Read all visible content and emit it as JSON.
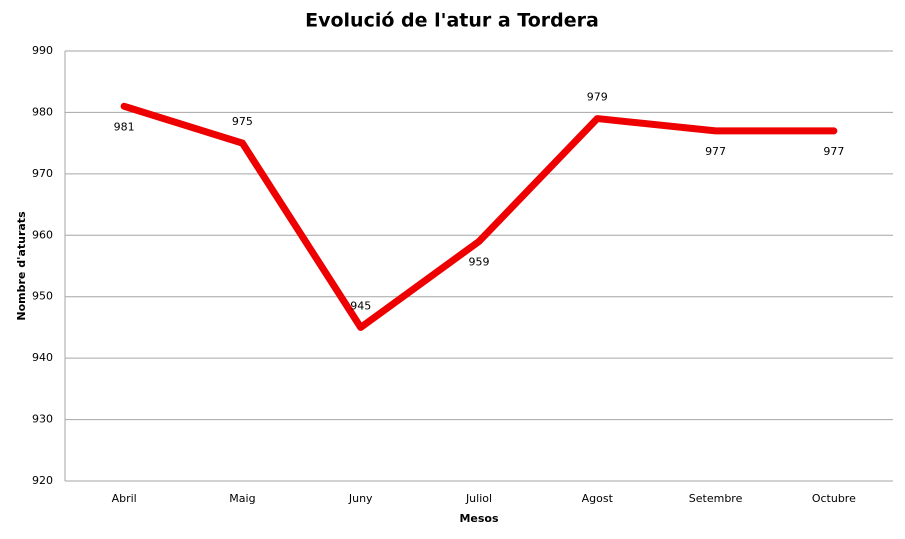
{
  "chart_data": {
    "type": "line",
    "title": "Evolució de l'atur a Tordera",
    "xlabel": "Mesos",
    "ylabel": "Nombre d'aturats",
    "categories": [
      "Abril",
      "Maig",
      "Juny",
      "Juliol",
      "Agost",
      "Setembre",
      "Octubre"
    ],
    "values": [
      981,
      975,
      945,
      959,
      979,
      977,
      977
    ],
    "color": "#ee0000",
    "ylim": [
      920,
      990
    ],
    "yticks": [
      920,
      930,
      940,
      950,
      960,
      970,
      980,
      990
    ],
    "grid": true
  }
}
